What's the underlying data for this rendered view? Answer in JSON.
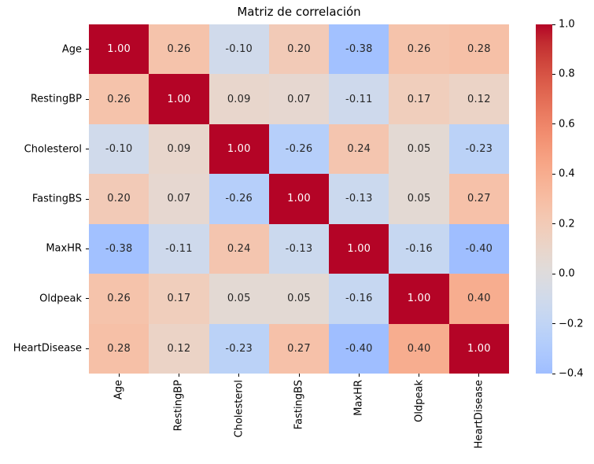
{
  "title": "Matriz de correlación",
  "chart_data": {
    "type": "heatmap",
    "title": "Matriz de correlación",
    "x_categories": [
      "Age",
      "RestingBP",
      "Cholesterol",
      "FastingBS",
      "MaxHR",
      "Oldpeak",
      "HeartDisease"
    ],
    "y_categories": [
      "Age",
      "RestingBP",
      "Cholesterol",
      "FastingBS",
      "MaxHR",
      "Oldpeak",
      "HeartDisease"
    ],
    "matrix": [
      [
        1.0,
        0.26,
        -0.1,
        0.2,
        -0.38,
        0.26,
        0.28
      ],
      [
        0.26,
        1.0,
        0.09,
        0.07,
        -0.11,
        0.17,
        0.12
      ],
      [
        -0.1,
        0.09,
        1.0,
        -0.26,
        0.24,
        0.05,
        -0.23
      ],
      [
        0.2,
        0.07,
        -0.26,
        1.0,
        -0.13,
        0.05,
        0.27
      ],
      [
        -0.38,
        -0.11,
        0.24,
        -0.13,
        1.0,
        -0.16,
        -0.4
      ],
      [
        0.26,
        0.17,
        0.05,
        0.05,
        -0.16,
        1.0,
        0.4
      ],
      [
        0.28,
        0.12,
        -0.23,
        0.27,
        -0.4,
        0.4,
        1.0
      ]
    ],
    "value_decimals": 2,
    "colormap": "coolwarm",
    "norm": {
      "center": 0,
      "map_min": -1.0,
      "map_max": 1.0,
      "display_min": -0.4,
      "display_max": 1.0
    },
    "colorbar": {
      "tick_labels": [
        "1.0",
        "0.8",
        "0.6",
        "0.4",
        "0.2",
        "0.0",
        "−0.2",
        "−0.4"
      ],
      "tick_values": [
        1.0,
        0.8,
        0.6,
        0.4,
        0.2,
        0.0,
        -0.2,
        -0.4
      ]
    },
    "annotation_colors": {
      "dark": "#262626",
      "light": "#ffffff"
    },
    "background": "#ffffff",
    "grid": false,
    "legend_position": "right-colorbar"
  }
}
